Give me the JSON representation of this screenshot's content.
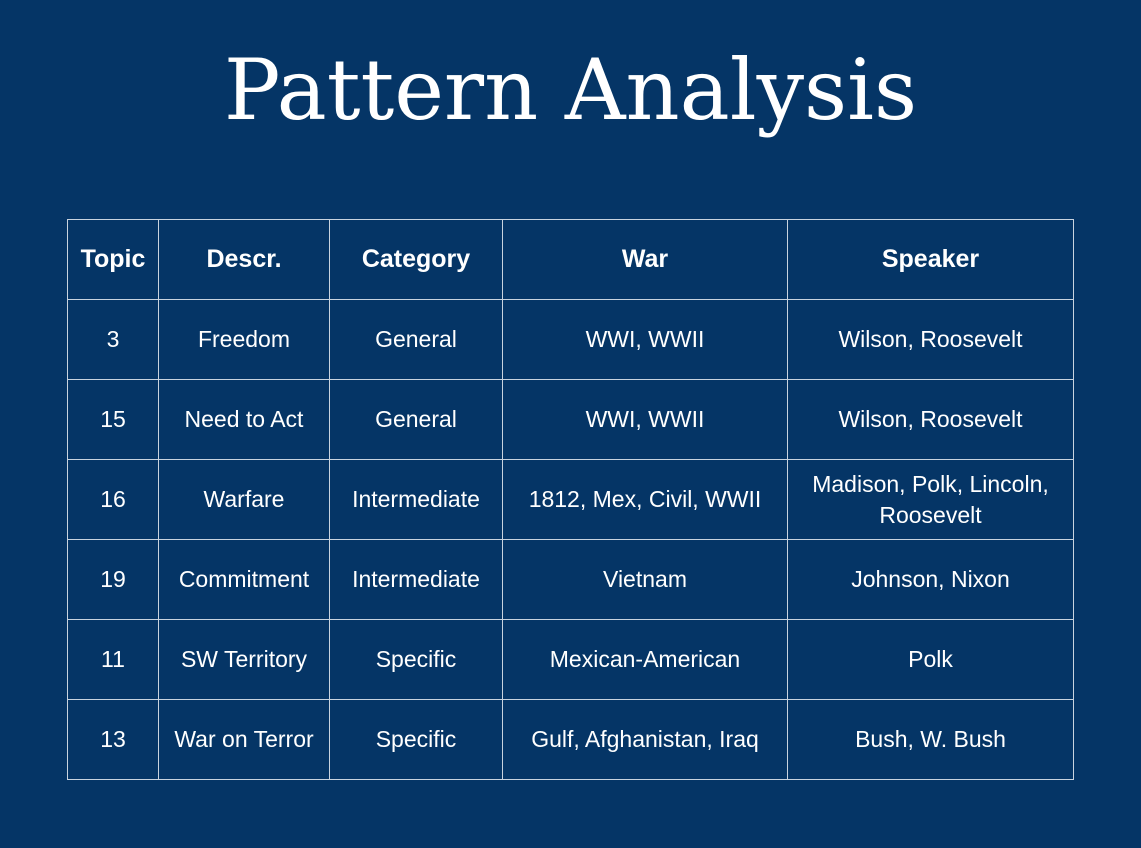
{
  "slide": {
    "title": "Pattern Analysis"
  },
  "table": {
    "headers": [
      "Topic",
      "Descr.",
      "Category",
      "War",
      "Speaker"
    ],
    "rows": [
      [
        "3",
        "Freedom",
        "General",
        "WWI, WWII",
        "Wilson, Roosevelt"
      ],
      [
        "15",
        "Need to Act",
        "General",
        "WWI, WWII",
        "Wilson, Roosevelt"
      ],
      [
        "16",
        "Warfare",
        "Intermediate",
        "1812, Mex, Civil, WWII",
        "Madison, Polk, Lincoln, Roosevelt"
      ],
      [
        "19",
        "Commitment",
        "Intermediate",
        "Vietnam",
        "Johnson, Nixon"
      ],
      [
        "11",
        "SW Territory",
        "Specific",
        "Mexican-American",
        "Polk"
      ],
      [
        "13",
        "War on Terror",
        "Specific",
        "Gulf, Afghanistan, Iraq",
        "Bush, W. Bush"
      ]
    ]
  },
  "colors": {
    "background": "#053566",
    "text": "#ffffff",
    "grid": "#c9d3df"
  }
}
